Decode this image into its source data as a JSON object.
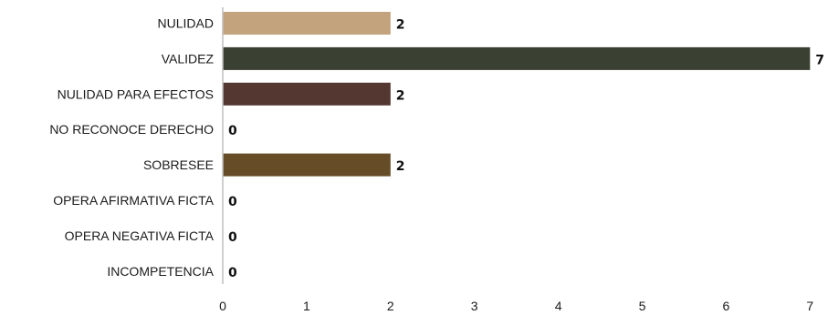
{
  "chart_data": {
    "type": "bar",
    "orientation": "horizontal",
    "categories": [
      "NULIDAD",
      "VALIDEZ",
      "NULIDAD PARA EFECTOS",
      "NO RECONOCE DERECHO",
      "SOBRESEE",
      "OPERA AFIRMATIVA FICTA",
      "OPERA NEGATIVA FICTA",
      "INCOMPETENCIA"
    ],
    "values": [
      2,
      7,
      2,
      0,
      2,
      0,
      0,
      0
    ],
    "colors": [
      "#c2a37d",
      "#3a4133",
      "#533730",
      "#bfbfbf",
      "#664d28",
      "#bfbfbf",
      "#bfbfbf",
      "#bfbfbf"
    ],
    "xlim": [
      0,
      7
    ],
    "xticks": [
      "0",
      "1",
      "2",
      "3",
      "4",
      "5",
      "6",
      "7"
    ],
    "title": "",
    "xlabel": "",
    "ylabel": "",
    "grid": false,
    "legend": "none",
    "data_labels": true
  }
}
